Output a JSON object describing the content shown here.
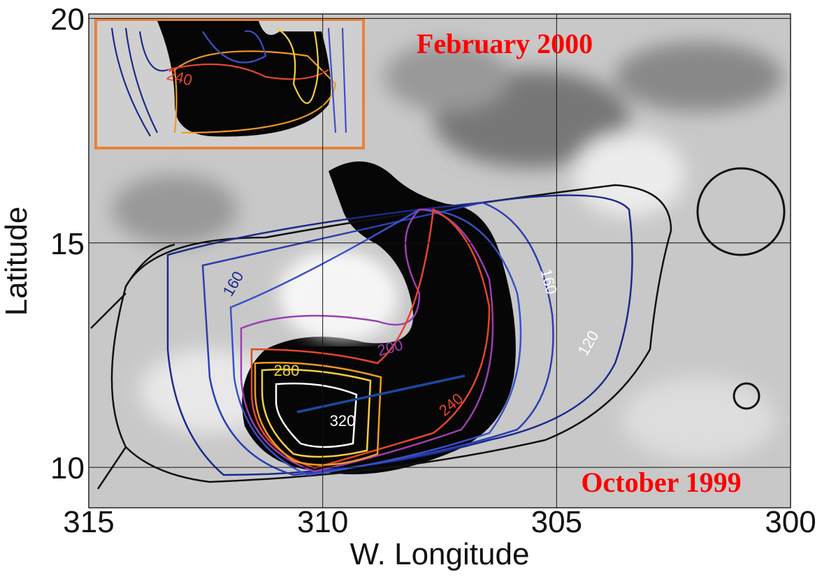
{
  "chart_data": {
    "type": "contour",
    "xlabel": "W. Longitude",
    "ylabel": "Latitude",
    "xlim": [
      315,
      300
    ],
    "xticks": [
      315,
      310,
      305,
      300
    ],
    "ylim": [
      9.1,
      20.1
    ],
    "yticks": [
      10,
      15,
      20
    ],
    "grid": true,
    "contour_labels": [
      "160",
      "160",
      "200",
      "240",
      "280",
      "320",
      "120",
      "240"
    ],
    "annotations": [
      "February 2000",
      "October 1999"
    ]
  }
}
